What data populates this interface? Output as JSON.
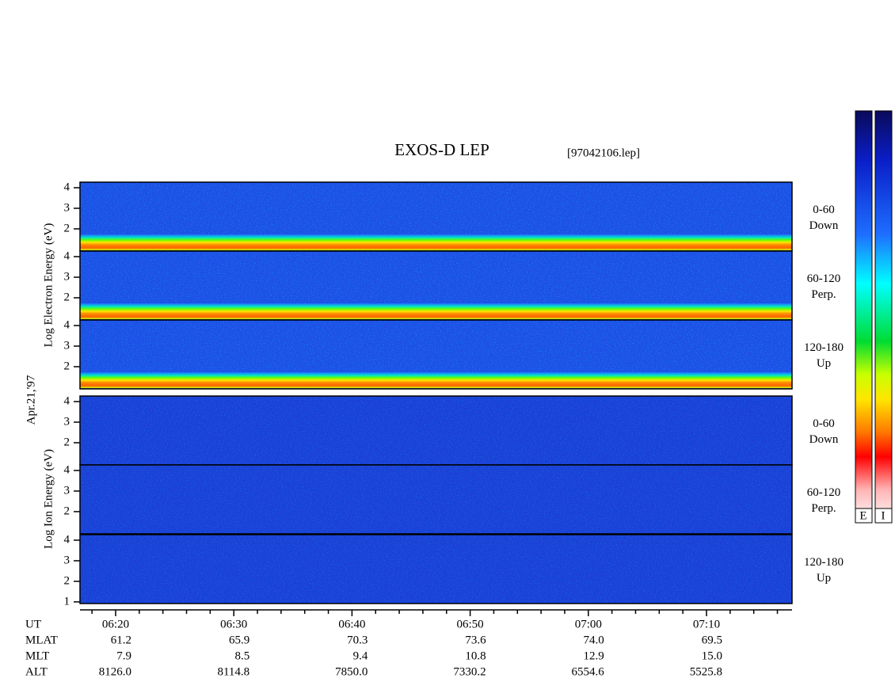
{
  "title": "EXOS-D LEP",
  "file": "[97042106.lep]",
  "date": "Apr.21,'97",
  "electron_axis_label": "Log  Electron  Energy (eV)",
  "ion_axis_label": "Log  Ion  Energy (eV)",
  "ylim": [
    0.92,
    4.27
  ],
  "panels": [
    {
      "angle": "0-60",
      "direction": "Down",
      "yticks": [
        2,
        3,
        4
      ]
    },
    {
      "angle": "60-120",
      "direction": "Perp.",
      "yticks": [
        2,
        3,
        4
      ]
    },
    {
      "angle": "120-180",
      "direction": "Up",
      "yticks": [
        2,
        3,
        4
      ]
    },
    {
      "angle": "0-60",
      "direction": "Down",
      "yticks": [
        2,
        3,
        4
      ]
    },
    {
      "angle": "60-120",
      "direction": "Perp.",
      "yticks": [
        2,
        3,
        4
      ]
    },
    {
      "angle": "120-180",
      "direction": "Up",
      "yticks": [
        1,
        2,
        3,
        4
      ]
    }
  ],
  "colorbar_labels": [
    "E",
    "I"
  ],
  "ephemeris": {
    "labels": [
      "UT",
      "MLAT",
      "MLT",
      "ALT"
    ],
    "rows": [
      [
        "06:20",
        "06:30",
        "06:40",
        "06:50",
        "07:00",
        "07:10"
      ],
      [
        "61.2",
        "65.9",
        "70.3",
        "73.6",
        "74.0",
        "69.5"
      ],
      [
        "7.9",
        "8.5",
        "9.4",
        "10.8",
        "12.9",
        "15.0"
      ],
      [
        "8126.0",
        "8114.8",
        "7850.0",
        "7330.2",
        "6554.6",
        "5525.8"
      ]
    ]
  }
}
